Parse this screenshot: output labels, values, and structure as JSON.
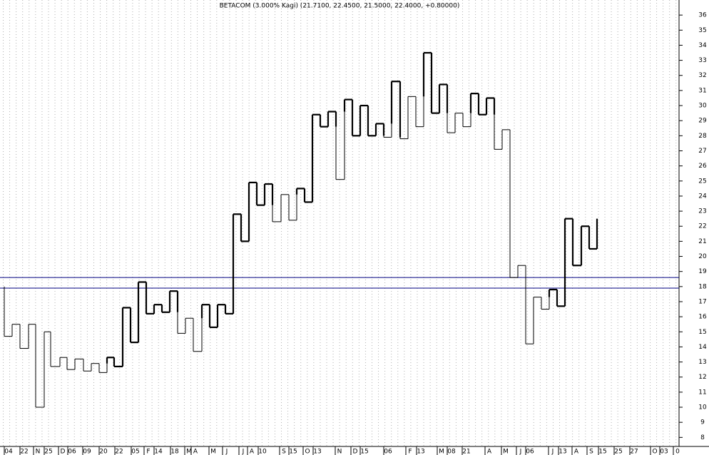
{
  "chart_data": {
    "type": "kagi",
    "title": "BETACOM (3.000% Kagi)  (21.7100, 22.4500, 21.5000, 22.4000, +0.80000)",
    "color": "#000000",
    "x": [
      6,
      6,
      17,
      28,
      40,
      50,
      62,
      71,
      84,
      94,
      105,
      117,
      128,
      139,
      150,
      160,
      172,
      183,
      194,
      205,
      216,
      227,
      238,
      249,
      260,
      271,
      283,
      294,
      305,
      316,
      327,
      338,
      349,
      360,
      371,
      382,
      394,
      405,
      416,
      427,
      438,
      449,
      460,
      471,
      483,
      494,
      505,
      516,
      527,
      538,
      549,
      561,
      572,
      583,
      594,
      605,
      616,
      627,
      638,
      649,
      660,
      671,
      682,
      693,
      704,
      715,
      726,
      737,
      748,
      759,
      770,
      781,
      792,
      803,
      815,
      826,
      837
    ],
    "values": [
      18.0,
      14.7,
      15.5,
      13.9,
      15.5,
      10.0,
      15.0,
      12.7,
      13.3,
      12.5,
      13.2,
      12.4,
      12.9,
      12.3,
      13.3,
      12.7,
      16.6,
      14.3,
      18.3,
      16.2,
      16.8,
      16.3,
      17.7,
      14.9,
      15.9,
      13.7,
      16.8,
      15.3,
      16.8,
      16.2,
      22.8,
      21.0,
      24.9,
      23.4,
      24.8,
      22.3,
      24.1,
      22.4,
      24.5,
      23.6,
      29.4,
      28.6,
      29.6,
      25.1,
      30.4,
      28.0,
      30.0,
      28.0,
      28.8,
      27.9,
      31.6,
      27.8,
      30.6,
      28.6,
      33.5,
      29.5,
      31.4,
      28.2,
      29.5,
      28.6,
      30.8,
      29.4,
      30.5,
      27.1,
      28.4,
      18.6,
      19.4,
      14.2,
      17.3,
      16.5,
      17.8,
      16.7,
      22.5,
      19.4,
      22.0,
      20.5,
      22.5
    ],
    "hlines": [
      18.6,
      17.9
    ],
    "hline_color": "#000080",
    "xlim": [
      0,
      952
    ],
    "ylim": [
      7.4,
      37
    ],
    "yticks": [
      8,
      9,
      10,
      11,
      12,
      13,
      14,
      15,
      16,
      17,
      18,
      19,
      20,
      21,
      22,
      23,
      24,
      25,
      26,
      27,
      28,
      29,
      30,
      31,
      32,
      33,
      34,
      35,
      36
    ],
    "xticks": [
      {
        "value": 12,
        "label": "04"
      },
      {
        "value": 34,
        "label": "22"
      },
      {
        "value": 53,
        "label": "N"
      },
      {
        "value": 68,
        "label": "25"
      },
      {
        "value": 88,
        "label": "D"
      },
      {
        "value": 101,
        "label": "06"
      },
      {
        "value": 122,
        "label": "09"
      },
      {
        "value": 145,
        "label": "20"
      },
      {
        "value": 167,
        "label": "22"
      },
      {
        "value": 190,
        "label": "05"
      },
      {
        "value": 208,
        "label": "F"
      },
      {
        "value": 222,
        "label": "14"
      },
      {
        "value": 245,
        "label": "18"
      },
      {
        "value": 265,
        "label": "M"
      },
      {
        "value": 274,
        "label": "A"
      },
      {
        "value": 299,
        "label": "M"
      },
      {
        "value": 318,
        "label": "J"
      },
      {
        "value": 341,
        "label": "J"
      },
      {
        "value": 353,
        "label": "A"
      },
      {
        "value": 368,
        "label": "10"
      },
      {
        "value": 398,
        "label": "S"
      },
      {
        "value": 411,
        "label": "15"
      },
      {
        "value": 431,
        "label": "O"
      },
      {
        "value": 445,
        "label": "13"
      },
      {
        "value": 476,
        "label": "N"
      },
      {
        "value": 498,
        "label": "D"
      },
      {
        "value": 511,
        "label": "15"
      },
      {
        "value": 544,
        "label": "06"
      },
      {
        "value": 575,
        "label": "F"
      },
      {
        "value": 590,
        "label": "13"
      },
      {
        "value": 619,
        "label": "M"
      },
      {
        "value": 633,
        "label": "08"
      },
      {
        "value": 654,
        "label": "21"
      },
      {
        "value": 686,
        "label": "A"
      },
      {
        "value": 709,
        "label": "M"
      },
      {
        "value": 730,
        "label": "J"
      },
      {
        "value": 743,
        "label": "06"
      },
      {
        "value": 775,
        "label": "J"
      },
      {
        "value": 789,
        "label": "13"
      },
      {
        "value": 808,
        "label": "A"
      },
      {
        "value": 829,
        "label": "S"
      },
      {
        "value": 845,
        "label": "15"
      },
      {
        "value": 867,
        "label": "25"
      },
      {
        "value": 889,
        "label": "27"
      },
      {
        "value": 918,
        "label": "O"
      },
      {
        "value": 931,
        "label": "03"
      },
      {
        "value": 950,
        "label": "0"
      }
    ]
  }
}
